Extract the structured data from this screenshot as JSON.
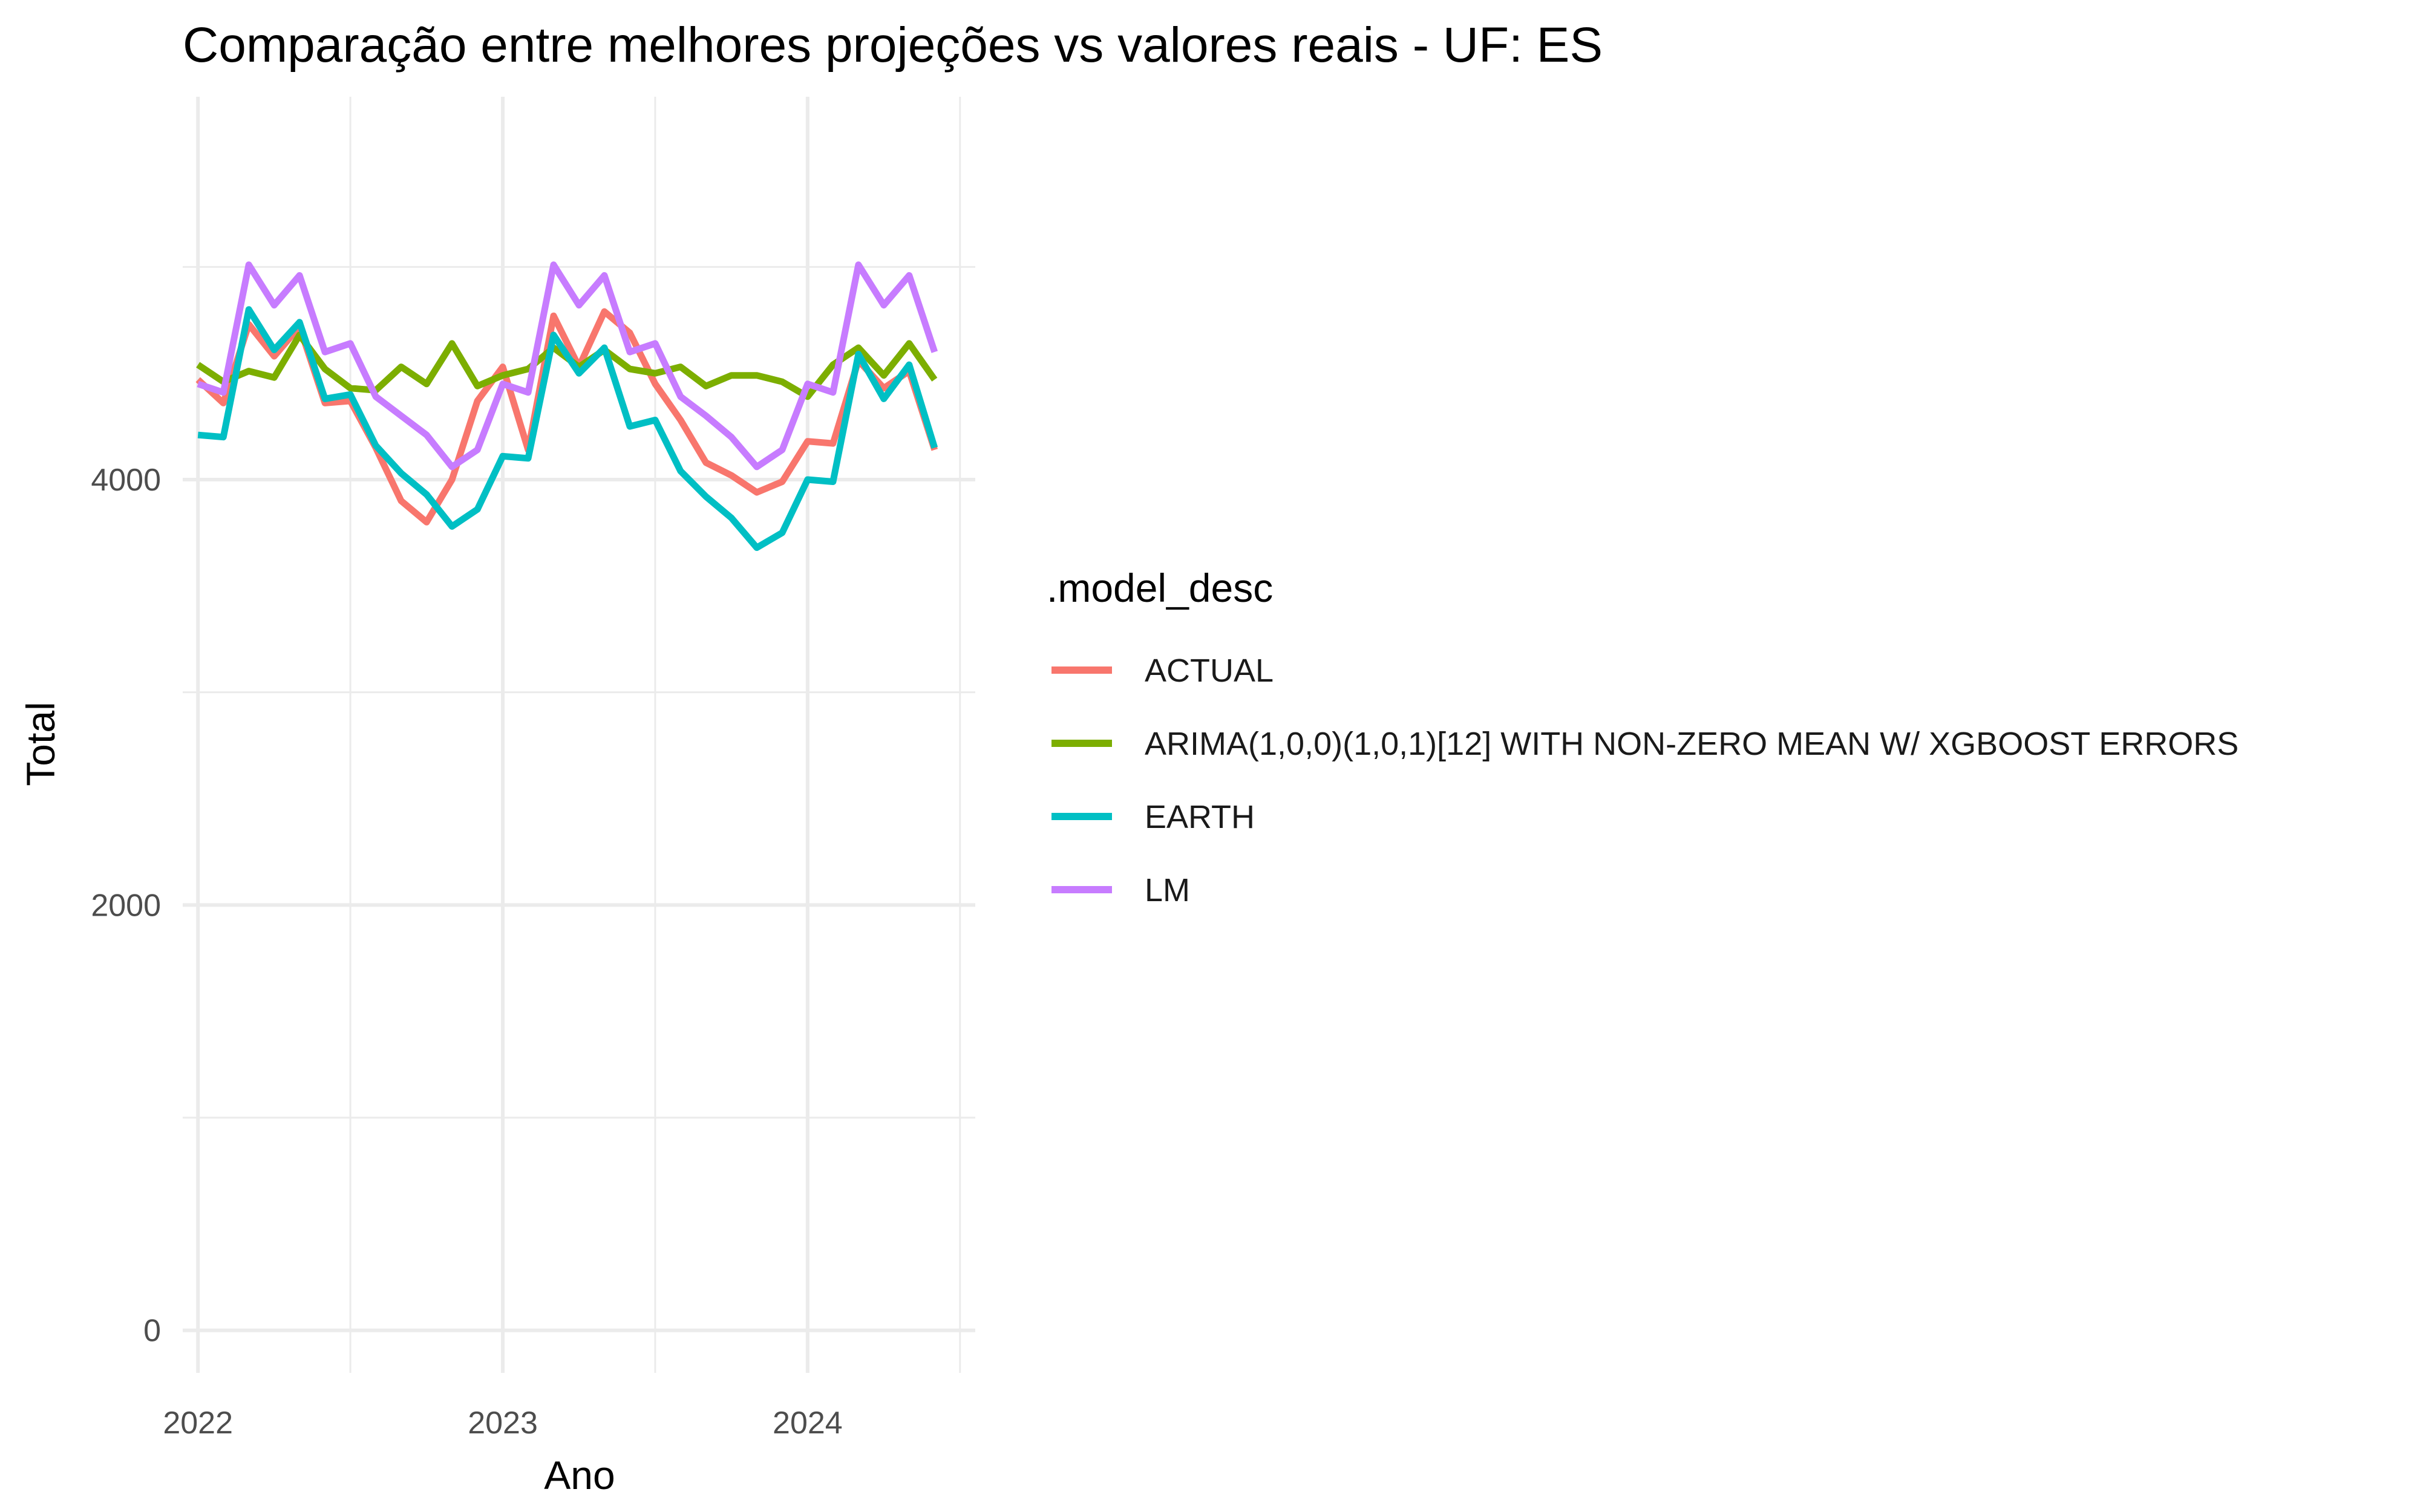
{
  "chart_data": {
    "type": "line",
    "title": "Comparação entre melhores projeções vs valores reais - UF: ES",
    "xlabel": "Ano",
    "ylabel": "Total",
    "x_ticks": [
      "2022",
      "2023",
      "2024"
    ],
    "y_ticks": [
      "0",
      "2000",
      "4000"
    ],
    "ylim": [
      -200,
      5800
    ],
    "xlim": [
      "2021-12",
      "2024-07"
    ],
    "grid": true,
    "legend": {
      "title": ".model_desc",
      "position": "right"
    },
    "x": [
      "2022-01",
      "2022-02",
      "2022-03",
      "2022-04",
      "2022-05",
      "2022-06",
      "2022-07",
      "2022-08",
      "2022-09",
      "2022-10",
      "2022-11",
      "2022-12",
      "2023-01",
      "2023-02",
      "2023-03",
      "2023-04",
      "2023-05",
      "2023-06",
      "2023-07",
      "2023-08",
      "2023-09",
      "2023-10",
      "2023-11",
      "2023-12",
      "2024-01",
      "2024-02",
      "2024-03",
      "2024-04",
      "2024-05",
      "2024-06"
    ],
    "series": [
      {
        "name": "ACTUAL",
        "color": "#F8766D",
        "values": [
          4470,
          4360,
          4730,
          4580,
          4720,
          4360,
          4370,
          4150,
          3900,
          3800,
          4000,
          4370,
          4530,
          4140,
          4770,
          4530,
          4790,
          4690,
          4450,
          4280,
          4080,
          4020,
          3940,
          3990,
          4180,
          4170,
          4560,
          4430,
          4510,
          4140
        ]
      },
      {
        "name": "ARIMA(1,0,0)(1,0,1)[12] WITH NON-ZERO MEAN W/ XGBOOST ERRORS",
        "color": "#7CAE00",
        "values": [
          4540,
          4460,
          4510,
          4480,
          4680,
          4520,
          4430,
          4420,
          4530,
          4450,
          4640,
          4440,
          4490,
          4520,
          4620,
          4530,
          4610,
          4520,
          4500,
          4530,
          4440,
          4490,
          4490,
          4460,
          4390,
          4540,
          4620,
          4490,
          4640,
          4470
        ]
      },
      {
        "name": "EARTH",
        "color": "#00BFC4",
        "values": [
          4210,
          4200,
          4800,
          4610,
          4740,
          4380,
          4400,
          4160,
          4030,
          3930,
          3780,
          3860,
          4110,
          4100,
          4680,
          4500,
          4620,
          4250,
          4280,
          4040,
          3920,
          3820,
          3680,
          3750,
          4000,
          3990,
          4590,
          4380,
          4540,
          4150
        ]
      },
      {
        "name": "LM",
        "color": "#C77CFF",
        "values": [
          4450,
          4410,
          5010,
          4820,
          4960,
          4600,
          4640,
          4390,
          4300,
          4210,
          4060,
          4140,
          4450,
          4410,
          5010,
          4820,
          4960,
          4600,
          4640,
          4390,
          4300,
          4200,
          4060,
          4140,
          4450,
          4410,
          5010,
          4820,
          4960,
          4600
        ]
      }
    ]
  }
}
